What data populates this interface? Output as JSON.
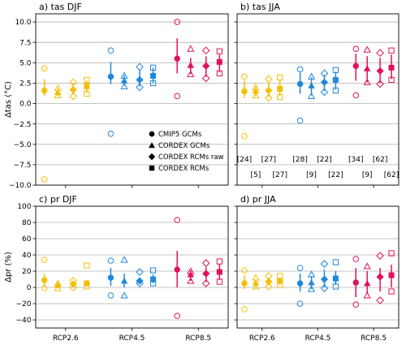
{
  "chart_data": {
    "type": "scatter",
    "scenarios": [
      "RCP2.6",
      "RCP4.5",
      "RCP8.5"
    ],
    "colors": {
      "RCP2.6": "#f5bf00",
      "RCP4.5": "#1f88dc",
      "RCP8.5": "#e0125c"
    },
    "ensembles": [
      "CMIP5 GCMs",
      "CORDEX GCMs",
      "CORDEX RCMs raw",
      "CORDEX RCMs"
    ],
    "legend": {
      "location": "panel b",
      "entries": [
        {
          "marker": "circle",
          "label": "CMIP5 GCMs"
        },
        {
          "marker": "triangle",
          "label": "CORDEX GCMs"
        },
        {
          "marker": "diamond",
          "label": "CORDEX RCMs raw"
        },
        {
          "marker": "square",
          "label": "CORDEX RCMs"
        }
      ]
    },
    "counts": {
      "label_position": "panel b",
      "RCP2.6": [
        24,
        5,
        27,
        27
      ],
      "RCP4.5": [
        28,
        9,
        22,
        22
      ],
      "RCP8.5": [
        34,
        9,
        62,
        62
      ]
    },
    "panels": [
      {
        "id": "a",
        "title": "a) tas DJF",
        "ylabel": "Δtas (°C)",
        "ylim": [
          -10,
          11
        ],
        "yticks": [
          -10.0,
          -7.5,
          -5.0,
          -2.5,
          0.0,
          2.5,
          5.0,
          7.5,
          10.0
        ],
        "yticklabels": [
          "−10.0",
          "−7.5",
          "−5.0",
          "−2.5",
          "0.0",
          "2.5",
          "5.0",
          "7.5",
          "10.0"
        ],
        "show_xticklabels": false,
        "series": {
          "RCP2.6": [
            {
              "mean": 1.6,
              "lo": 0.9,
              "hi": 3.0,
              "min": -9.3,
              "max": 4.3
            },
            {
              "mean": 1.4,
              "lo": 0.9,
              "hi": 1.9,
              "min": 1.0,
              "max": 1.9
            },
            {
              "mean": 1.7,
              "lo": 1.1,
              "hi": 2.5,
              "min": 0.9,
              "max": 2.6
            },
            {
              "mean": 2.1,
              "lo": 1.3,
              "hi": 2.8,
              "min": 1.2,
              "max": 2.9
            }
          ],
          "RCP4.5": [
            {
              "mean": 3.3,
              "lo": 2.4,
              "hi": 5.1,
              "min": -3.7,
              "max": 6.5
            },
            {
              "mean": 2.8,
              "lo": 2.2,
              "hi": 3.5,
              "min": 2.1,
              "max": 3.4
            },
            {
              "mean": 2.9,
              "lo": 2.1,
              "hi": 4.2,
              "min": 2.0,
              "max": 4.5
            },
            {
              "mean": 3.4,
              "lo": 2.5,
              "hi": 4.4,
              "min": 2.5,
              "max": 4.4
            }
          ],
          "RCP8.5": [
            {
              "mean": 5.5,
              "lo": 3.7,
              "hi": 8.0,
              "min": 0.9,
              "max": 10.0
            },
            {
              "mean": 4.7,
              "lo": 3.6,
              "hi": 5.6,
              "min": 3.6,
              "max": 6.7
            },
            {
              "mean": 4.6,
              "lo": 3.3,
              "hi": 5.8,
              "min": 3.1,
              "max": 6.5
            },
            {
              "mean": 5.1,
              "lo": 3.8,
              "hi": 6.0,
              "min": 3.7,
              "max": 6.4
            }
          ]
        }
      },
      {
        "id": "b",
        "title": "b) tas JJA",
        "ylabel": "",
        "ylim": [
          -10,
          11
        ],
        "yticks": [
          -10.0,
          -7.5,
          -5.0,
          -2.5,
          0.0,
          2.5,
          5.0,
          7.5,
          10.0
        ],
        "yticklabels": [],
        "show_xticklabels": false,
        "series": {
          "RCP2.6": [
            {
              "mean": 1.5,
              "lo": 0.7,
              "hi": 2.8,
              "min": -4.0,
              "max": 3.3
            },
            {
              "mean": 1.6,
              "lo": 0.9,
              "hi": 2.1,
              "min": 1.0,
              "max": 2.0
            },
            {
              "mean": 1.6,
              "lo": 0.8,
              "hi": 2.6,
              "min": 0.7,
              "max": 3.0
            },
            {
              "mean": 1.8,
              "lo": 0.9,
              "hi": 2.9,
              "min": 0.8,
              "max": 3.2
            }
          ],
          "RCP4.5": [
            {
              "mean": 2.4,
              "lo": 1.2,
              "hi": 3.8,
              "min": -2.1,
              "max": 4.2
            },
            {
              "mean": 2.2,
              "lo": 1.0,
              "hi": 3.2,
              "min": 0.9,
              "max": 3.3
            },
            {
              "mean": 2.6,
              "lo": 1.5,
              "hi": 3.5,
              "min": 1.4,
              "max": 3.7
            },
            {
              "mean": 2.9,
              "lo": 1.7,
              "hi": 3.9,
              "min": 1.6,
              "max": 4.1
            }
          ],
          "RCP8.5": [
            {
              "mean": 4.6,
              "lo": 2.8,
              "hi": 6.1,
              "min": 1.0,
              "max": 6.7
            },
            {
              "mean": 4.3,
              "lo": 2.6,
              "hi": 5.8,
              "min": 2.6,
              "max": 6.6
            },
            {
              "mean": 4.0,
              "lo": 2.5,
              "hi": 5.6,
              "min": 2.4,
              "max": 6.2
            },
            {
              "mean": 4.4,
              "lo": 3.0,
              "hi": 6.0,
              "min": 2.9,
              "max": 6.5
            }
          ]
        }
      },
      {
        "id": "c",
        "title": "c) pr DJF",
        "ylabel": "Δpr (%)",
        "ylim": [
          -50,
          100
        ],
        "yticks": [
          -40,
          -20,
          0,
          20,
          40,
          60,
          80,
          100
        ],
        "yticklabels": [
          "−40",
          "−20",
          "0",
          "20",
          "40",
          "60",
          "80",
          "100"
        ],
        "show_xticklabels": true,
        "series": {
          "RCP2.6": [
            {
              "mean": 9,
              "lo": 1,
              "hi": 17,
              "min": -1,
              "max": 34
            },
            {
              "mean": 3,
              "lo": -1,
              "hi": 5,
              "min": -1,
              "max": 5
            },
            {
              "mean": 4,
              "lo": 0,
              "hi": 7,
              "min": 0,
              "max": 8
            },
            {
              "mean": 5,
              "lo": 1,
              "hi": 9,
              "min": 1,
              "max": 27
            }
          ],
          "RCP4.5": [
            {
              "mean": 12,
              "lo": 2,
              "hi": 24,
              "min": -10,
              "max": 33
            },
            {
              "mean": 8,
              "lo": 0,
              "hi": 17,
              "min": -10,
              "max": 34
            },
            {
              "mean": 8,
              "lo": 4,
              "hi": 12,
              "min": 5,
              "max": 19
            },
            {
              "mean": 10,
              "lo": 5,
              "hi": 16,
              "min": 5,
              "max": 21
            }
          ],
          "RCP8.5": [
            {
              "mean": 22,
              "lo": 0,
              "hi": 45,
              "min": -35,
              "max": 83
            },
            {
              "mean": 16,
              "lo": 8,
              "hi": 21,
              "min": 8,
              "max": 20
            },
            {
              "mean": 17,
              "lo": 7,
              "hi": 25,
              "min": 5,
              "max": 30
            },
            {
              "mean": 19,
              "lo": 9,
              "hi": 29,
              "min": 7,
              "max": 32
            }
          ]
        }
      },
      {
        "id": "d",
        "title": "d) pr JJA",
        "ylabel": "",
        "ylim": [
          -50,
          100
        ],
        "yticks": [
          -40,
          -20,
          0,
          20,
          40,
          60,
          80,
          100
        ],
        "yticklabels": [],
        "show_xticklabels": true,
        "series": {
          "RCP2.6": [
            {
              "mean": 5,
              "lo": -2,
              "hi": 15,
              "min": -27,
              "max": 21
            },
            {
              "mean": 6,
              "lo": 0,
              "hi": 10,
              "min": 1,
              "max": 12
            },
            {
              "mean": 7,
              "lo": 2,
              "hi": 12,
              "min": 1,
              "max": 14
            },
            {
              "mean": 8,
              "lo": 3,
              "hi": 12,
              "min": 3,
              "max": 14
            }
          ],
          "RCP4.5": [
            {
              "mean": 5,
              "lo": -5,
              "hi": 17,
              "min": -20,
              "max": 24
            },
            {
              "mean": 6,
              "lo": -2,
              "hi": 14,
              "min": -2,
              "max": 16
            },
            {
              "mean": 10,
              "lo": 0,
              "hi": 22,
              "min": -1,
              "max": 29
            },
            {
              "mean": 11,
              "lo": 3,
              "hi": 20,
              "min": 1,
              "max": 31
            }
          ],
          "RCP8.5": [
            {
              "mean": 6,
              "lo": -12,
              "hi": 24,
              "min": -21,
              "max": 35
            },
            {
              "mean": 5,
              "lo": -8,
              "hi": 20,
              "min": -10,
              "max": 26
            },
            {
              "mean": 13,
              "lo": -5,
              "hi": 24,
              "min": -16,
              "max": 39
            },
            {
              "mean": 15,
              "lo": 0,
              "hi": 28,
              "min": -5,
              "max": 42
            }
          ]
        }
      }
    ]
  }
}
